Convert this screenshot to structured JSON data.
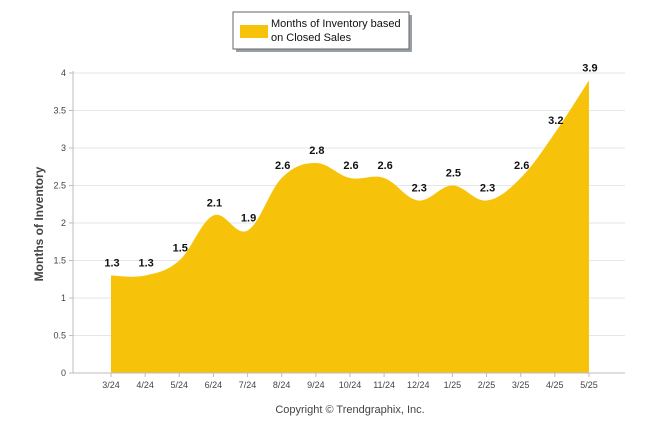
{
  "chart_data": {
    "type": "area",
    "categories": [
      "3/24",
      "4/24",
      "5/24",
      "6/24",
      "7/24",
      "8/24",
      "9/24",
      "10/24",
      "11/24",
      "12/24",
      "1/25",
      "2/25",
      "3/25",
      "4/25",
      "5/25"
    ],
    "series": [
      {
        "name": "Months of Inventory based on Closed Sales",
        "values": [
          1.3,
          1.3,
          1.5,
          2.1,
          1.9,
          2.6,
          2.8,
          2.6,
          2.6,
          2.3,
          2.5,
          2.3,
          2.6,
          3.2,
          3.9
        ],
        "color": "#f7c30a"
      }
    ],
    "data_labels": [
      "1.3",
      "1.3",
      "1.5",
      "2.1",
      "1.9",
      "2.6",
      "2.8",
      "2.6",
      "2.6",
      "2.3",
      "2.5",
      "2.3",
      "2.6",
      "3.2",
      "3.9"
    ],
    "legend": {
      "line1": "Months of Inventory based",
      "line2": "on Closed Sales",
      "placement": "top-center"
    },
    "ylabel": "Months of Inventory",
    "ylim": [
      0,
      4
    ],
    "yticks": [
      "0",
      "0.5",
      "1",
      "1.5",
      "2",
      "2.5",
      "3",
      "3.5",
      "4"
    ],
    "grid": true
  },
  "footer": {
    "text": "Copyright © Trendgraphix, Inc."
  }
}
